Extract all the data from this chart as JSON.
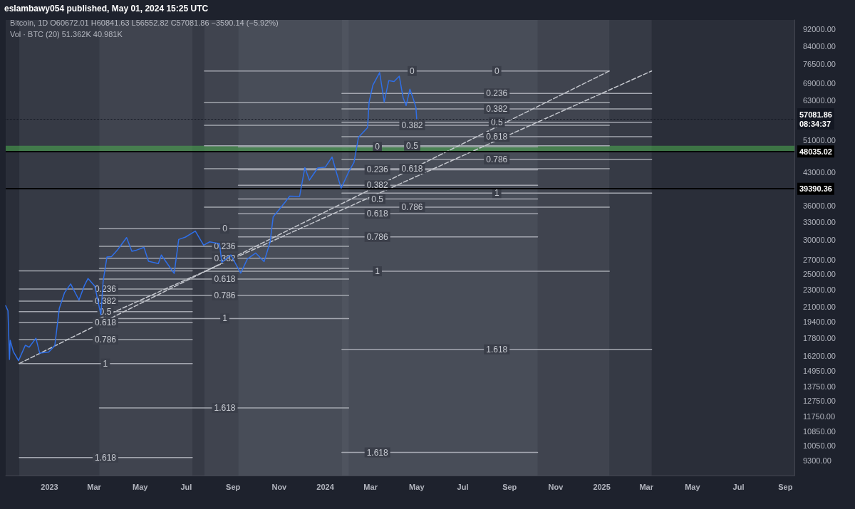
{
  "chart_data": {
    "type": "line",
    "title": "eslambawy054 published, May 01, 2024 15:25 UTC",
    "annotations": [
      "Bitcoin, 1D  O60672.01  H60841.63  L56552.82  C57081.86  −3590.14 (−5.92%)",
      "Vol · BTC (20)  51.362K  40.981K",
      {
        "text": "0.236",
        "x": "2023-03-16",
        "y": 23120
      },
      {
        "text": "0.382",
        "x": "2023-03-16",
        "y": 21680
      },
      {
        "text": "0.5",
        "x": "2023-03-16",
        "y": 20510
      },
      {
        "text": "0.618",
        "x": "2023-03-16",
        "y": 19340
      },
      {
        "text": "0.786",
        "x": "2023-03-16",
        "y": 17680
      },
      {
        "text": "1",
        "x": "2023-03-16",
        "y": 15560
      },
      {
        "text": "1.618",
        "x": "2023-03-16",
        "y": 9440
      },
      {
        "text": "0",
        "x": "2023-08-21",
        "y": 31850
      },
      {
        "text": "0.236",
        "x": "2023-08-21",
        "y": 29000
      },
      {
        "text": "0.382",
        "x": "2023-08-21",
        "y": 27230
      },
      {
        "text": "0.618",
        "x": "2023-08-21",
        "y": 24380
      },
      {
        "text": "0.786",
        "x": "2023-08-21",
        "y": 22350
      },
      {
        "text": "1",
        "x": "2023-08-21",
        "y": 19760
      },
      {
        "text": "1.618",
        "x": "2023-08-21",
        "y": 12290
      },
      {
        "text": "0",
        "x": "2024-03-10",
        "y": 49200
      },
      {
        "text": "0.236",
        "x": "2024-03-10",
        "y": 43580
      },
      {
        "text": "0.382",
        "x": "2024-03-10",
        "y": 40110
      },
      {
        "text": "0.5",
        "x": "2024-03-10",
        "y": 37300
      },
      {
        "text": "0.618",
        "x": "2024-03-10",
        "y": 34490
      },
      {
        "text": "0.786",
        "x": "2024-03-10",
        "y": 30490
      },
      {
        "text": "1",
        "x": "2024-03-10",
        "y": 25400
      },
      {
        "text": "1.618",
        "x": "2024-03-10",
        "y": 9700
      },
      {
        "text": "0",
        "x": "2024-04-25",
        "y": 73640
      },
      {
        "text": "0.382",
        "x": "2024-04-25",
        "y": 55210
      },
      {
        "text": "0.5",
        "x": "2024-04-25",
        "y": 49520
      },
      {
        "text": "0.618",
        "x": "2024-04-25",
        "y": 43830
      },
      {
        "text": "0.786",
        "x": "2024-04-25",
        "y": 35730
      },
      {
        "text": "0",
        "x": "2024-08-15",
        "y": 73640
      },
      {
        "text": "0.236",
        "x": "2024-08-15",
        "y": 65340
      },
      {
        "text": "0.382",
        "x": "2024-08-15",
        "y": 60210
      },
      {
        "text": "0.5",
        "x": "2024-08-15",
        "y": 56070
      },
      {
        "text": "0.618",
        "x": "2024-08-15",
        "y": 51920
      },
      {
        "text": "0.786",
        "x": "2024-08-15",
        "y": 46010
      },
      {
        "text": "1",
        "x": "2024-08-15",
        "y": 38490
      },
      {
        "text": "1.618",
        "x": "2024-08-15",
        "y": 16770
      }
    ],
    "log": true,
    "xlim": [
      "2022-11-04",
      "2025-09-13"
    ],
    "xticks": [
      {
        "value": "2023-01-01",
        "label": "2023"
      },
      {
        "value": "2023-03-01",
        "label": "Mar"
      },
      {
        "value": "2023-05-01",
        "label": "May"
      },
      {
        "value": "2023-07-01",
        "label": "Jul"
      },
      {
        "value": "2023-09-01",
        "label": "Sep"
      },
      {
        "value": "2023-11-01",
        "label": "Nov"
      },
      {
        "value": "2024-01-01",
        "label": "2024"
      },
      {
        "value": "2024-03-01",
        "label": "Mar"
      },
      {
        "value": "2024-05-01",
        "label": "May"
      },
      {
        "value": "2024-07-01",
        "label": "Jul"
      },
      {
        "value": "2024-09-01",
        "label": "Sep"
      },
      {
        "value": "2024-11-01",
        "label": "Nov"
      },
      {
        "value": "2025-01-01",
        "label": "2025"
      },
      {
        "value": "2025-03-01",
        "label": "Mar"
      },
      {
        "value": "2025-05-01",
        "label": "May"
      },
      {
        "value": "2025-07-01",
        "label": "Jul"
      },
      {
        "value": "2025-09-01",
        "label": "Sep"
      }
    ],
    "ylim": [
      8580,
      96600
    ],
    "yticks": [
      {
        "value": 92000,
        "label": "92000.00"
      },
      {
        "value": 84000,
        "label": "84000.00"
      },
      {
        "value": 76500,
        "label": "76500.00"
      },
      {
        "value": 69000,
        "label": "69000.00"
      },
      {
        "value": 63000,
        "label": "63000.00"
      },
      {
        "value": 51000,
        "label": "51000.00"
      },
      {
        "value": 43000,
        "label": "43000.00"
      },
      {
        "value": 36000,
        "label": "36000.00"
      },
      {
        "value": 33000,
        "label": "33000.00"
      },
      {
        "value": 30000,
        "label": "30000.00"
      },
      {
        "value": 27000,
        "label": "27000.00"
      },
      {
        "value": 25000,
        "label": "25000.00"
      },
      {
        "value": 23000,
        "label": "23000.00"
      },
      {
        "value": 21000,
        "label": "21000.00"
      },
      {
        "value": 19400,
        "label": "19400.00"
      },
      {
        "value": 17800,
        "label": "17800.00"
      },
      {
        "value": 16200,
        "label": "16200.00"
      },
      {
        "value": 14950,
        "label": "14950.00"
      },
      {
        "value": 13750,
        "label": "13750.00"
      },
      {
        "value": 12750,
        "label": "12750.00"
      },
      {
        "value": 11750,
        "label": "11750.00"
      },
      {
        "value": 10850,
        "label": "10850.00"
      },
      {
        "value": 10050,
        "label": "10050.00"
      },
      {
        "value": 9300,
        "label": "9300.00"
      }
    ],
    "marker": "none",
    "bands": [
      {
        "axis": "x",
        "from": "2022-11-22",
        "to": "2023-07-09",
        "color": "#787b86"
      },
      {
        "axis": "x",
        "from": "2023-03-08",
        "to": "2024-02-01",
        "color": "#787b86"
      },
      {
        "axis": "x",
        "from": "2023-07-25",
        "to": "2025-01-11",
        "color": "#787b86"
      },
      {
        "axis": "x",
        "from": "2023-09-08",
        "to": "2024-10-08",
        "color": "#787b86"
      },
      {
        "axis": "x",
        "from": "2024-01-23",
        "to": "2025-03-08",
        "color": "#787b86"
      },
      {
        "axis": "y",
        "from": 47940,
        "to": 49480,
        "color": "#4caf50"
      }
    ],
    "ref_lines": [
      {
        "axis": "y",
        "value": 57081.86,
        "label": "57081.86\n08:34:37",
        "color": "#131722",
        "line_style": "dotted"
      },
      {
        "axis": "y",
        "value": 48035.02,
        "label": "48035.02",
        "color": "#000000",
        "line_style": "solid"
      },
      {
        "axis": "y",
        "value": 39390.36,
        "label": "39390.36",
        "color": "#000000",
        "line_style": "solid"
      }
    ],
    "series": [
      {
        "color": "#a3a6af",
        "x": [
          "2022-11-22",
          "2023-07-09"
        ],
        "values": [
          25460,
          25460
        ]
      },
      {
        "color": "#a3a6af",
        "x": [
          "2022-11-22",
          "2023-07-09"
        ],
        "values": [
          23120,
          23120
        ]
      },
      {
        "color": "#a3a6af",
        "x": [
          "2022-11-22",
          "2023-07-09"
        ],
        "values": [
          21680,
          21680
        ]
      },
      {
        "color": "#a3a6af",
        "x": [
          "2022-11-22",
          "2023-07-09"
        ],
        "values": [
          20510,
          20510
        ]
      },
      {
        "color": "#a3a6af",
        "x": [
          "2022-11-22",
          "2023-07-09"
        ],
        "values": [
          19340,
          19340
        ]
      },
      {
        "color": "#a3a6af",
        "x": [
          "2022-11-22",
          "2023-07-09"
        ],
        "values": [
          17680,
          17680
        ]
      },
      {
        "color": "#a3a6af",
        "x": [
          "2022-11-22",
          "2023-07-09"
        ],
        "values": [
          15560,
          15560
        ]
      },
      {
        "color": "#a3a6af",
        "x": [
          "2022-11-22",
          "2023-07-09"
        ],
        "values": [
          9440,
          9440
        ]
      },
      {
        "color": "#a3a6af",
        "x": [
          "2023-03-08",
          "2024-02-01"
        ],
        "values": [
          31850,
          31850
        ]
      },
      {
        "color": "#a3a6af",
        "x": [
          "2023-03-08",
          "2024-02-01"
        ],
        "values": [
          29000,
          29000
        ]
      },
      {
        "color": "#a3a6af",
        "x": [
          "2023-03-08",
          "2024-02-01"
        ],
        "values": [
          27230,
          27230
        ]
      },
      {
        "color": "#a3a6af",
        "x": [
          "2023-03-08",
          "2024-02-01"
        ],
        "values": [
          25800,
          25800
        ]
      },
      {
        "color": "#a3a6af",
        "x": [
          "2023-03-08",
          "2024-02-01"
        ],
        "values": [
          24380,
          24380
        ]
      },
      {
        "color": "#a3a6af",
        "x": [
          "2023-03-08",
          "2024-02-01"
        ],
        "values": [
          22350,
          22350
        ]
      },
      {
        "color": "#a3a6af",
        "x": [
          "2023-03-08",
          "2024-02-01"
        ],
        "values": [
          19760,
          19760
        ]
      },
      {
        "color": "#a3a6af",
        "x": [
          "2023-03-08",
          "2024-02-01"
        ],
        "values": [
          12290,
          12290
        ]
      },
      {
        "color": "#a3a6af",
        "x": [
          "2023-07-25",
          "2025-01-11"
        ],
        "values": [
          73640,
          73640
        ]
      },
      {
        "color": "#a3a6af",
        "x": [
          "2023-07-25",
          "2025-01-11"
        ],
        "values": [
          62260,
          62260
        ]
      },
      {
        "color": "#a3a6af",
        "x": [
          "2023-07-25",
          "2025-01-11"
        ],
        "values": [
          55210,
          55210
        ]
      },
      {
        "color": "#a3a6af",
        "x": [
          "2023-07-25",
          "2025-01-11"
        ],
        "values": [
          49520,
          49520
        ]
      },
      {
        "color": "#a3a6af",
        "x": [
          "2023-07-25",
          "2025-01-11"
        ],
        "values": [
          43830,
          43830
        ]
      },
      {
        "color": "#a3a6af",
        "x": [
          "2023-07-25",
          "2025-01-11"
        ],
        "values": [
          35730,
          35730
        ]
      },
      {
        "color": "#a3a6af",
        "x": [
          "2023-07-25",
          "2025-01-11"
        ],
        "values": [
          25400,
          25400
        ]
      },
      {
        "color": "#a3a6af",
        "x": [
          "2023-09-08",
          "2024-10-08"
        ],
        "values": [
          49200,
          49200
        ]
      },
      {
        "color": "#a3a6af",
        "x": [
          "2023-09-08",
          "2024-10-08"
        ],
        "values": [
          43580,
          43580
        ]
      },
      {
        "color": "#a3a6af",
        "x": [
          "2023-09-08",
          "2024-10-08"
        ],
        "values": [
          40110,
          40110
        ]
      },
      {
        "color": "#a3a6af",
        "x": [
          "2023-09-08",
          "2024-10-08"
        ],
        "values": [
          37300,
          37300
        ]
      },
      {
        "color": "#a3a6af",
        "x": [
          "2023-09-08",
          "2024-10-08"
        ],
        "values": [
          34490,
          34490
        ]
      },
      {
        "color": "#a3a6af",
        "x": [
          "2023-09-08",
          "2024-10-08"
        ],
        "values": [
          30490,
          30490
        ]
      },
      {
        "color": "#a3a6af",
        "x": [
          "2024-01-23",
          "2024-10-08"
        ],
        "values": [
          9700,
          9700
        ]
      },
      {
        "color": "#a3a6af",
        "x": [
          "2024-01-23",
          "2025-03-08"
        ],
        "values": [
          65340,
          65340
        ]
      },
      {
        "color": "#a3a6af",
        "x": [
          "2024-01-23",
          "2025-03-08"
        ],
        "values": [
          60210,
          60210
        ]
      },
      {
        "color": "#a3a6af",
        "x": [
          "2024-01-23",
          "2025-03-08"
        ],
        "values": [
          56070,
          56070
        ]
      },
      {
        "color": "#a3a6af",
        "x": [
          "2024-01-23",
          "2025-03-08"
        ],
        "values": [
          51920,
          51920
        ]
      },
      {
        "color": "#a3a6af",
        "x": [
          "2024-01-23",
          "2025-03-08"
        ],
        "values": [
          46010,
          46010
        ]
      },
      {
        "color": "#a3a6af",
        "x": [
          "2024-01-23",
          "2025-03-08"
        ],
        "values": [
          38490,
          38490
        ]
      },
      {
        "color": "#a3a6af",
        "x": [
          "2024-01-23",
          "2025-03-08"
        ],
        "values": [
          16770,
          16770
        ]
      },
      {
        "color": "#c5c8cf",
        "line_style": "dashed",
        "x": [
          "2022-11-22",
          "2025-01-11"
        ],
        "values": [
          15560,
          73640
        ]
      },
      {
        "color": "#c5c8cf",
        "line_style": "dashed",
        "x": [
          "2023-03-08",
          "2025-03-08"
        ],
        "values": [
          19760,
          73640
        ]
      },
      {
        "color": "#2f6fe8",
        "x": [
          "2022-11-04",
          "2022-11-07",
          "2022-11-09",
          "2022-11-10",
          "2022-11-14",
          "2022-11-21",
          "2022-11-30",
          "2022-12-05",
          "2022-12-14",
          "2022-12-19",
          "2022-12-31",
          "2023-01-08",
          "2023-01-14",
          "2023-01-21",
          "2023-01-29",
          "2023-02-09",
          "2023-02-16",
          "2023-02-21",
          "2023-03-02",
          "2023-03-10",
          "2023-03-13",
          "2023-03-18",
          "2023-03-24",
          "2023-04-01",
          "2023-04-13",
          "2023-04-20",
          "2023-04-26",
          "2023-05-06",
          "2023-05-12",
          "2023-05-25",
          "2023-05-29",
          "2023-06-10",
          "2023-06-15",
          "2023-06-21",
          "2023-06-30",
          "2023-07-13",
          "2023-07-24",
          "2023-08-01",
          "2023-08-14",
          "2023-08-17",
          "2023-08-29",
          "2023-09-11",
          "2023-09-20",
          "2023-10-01",
          "2023-10-12",
          "2023-10-20",
          "2023-10-24",
          "2023-11-09",
          "2023-11-15",
          "2023-11-28",
          "2023-12-05",
          "2023-12-11",
          "2023-12-22",
          "2024-01-01",
          "2024-01-10",
          "2024-01-16",
          "2024-01-22",
          "2024-02-01",
          "2024-02-08",
          "2024-02-14",
          "2024-02-26",
          "2024-02-28",
          "2024-03-04",
          "2024-03-13",
          "2024-03-19",
          "2024-03-25",
          "2024-04-01",
          "2024-04-08",
          "2024-04-13",
          "2024-04-17",
          "2024-04-22",
          "2024-04-27",
          "2024-04-30",
          "2024-05-01"
        ],
        "values": [
          21150,
          20600,
          15900,
          17600,
          16600,
          15800,
          17150,
          16970,
          17800,
          16440,
          16540,
          17120,
          20880,
          22700,
          23750,
          21800,
          23520,
          24450,
          23470,
          20150,
          24120,
          27400,
          27470,
          28470,
          30390,
          28240,
          28420,
          28850,
          26800,
          26470,
          27700,
          25850,
          25120,
          30080,
          30470,
          31450,
          29180,
          29700,
          29420,
          26620,
          27720,
          25150,
          27130,
          27990,
          26750,
          29670,
          33900,
          36700,
          37880,
          37820,
          44080,
          41240,
          43980,
          44180,
          46630,
          42800,
          39500,
          43080,
          45290,
          51800,
          54500,
          62400,
          68300,
          73070,
          62440,
          69950,
          69640,
          71620,
          63910,
          61270,
          66840,
          63120,
          60670,
          57081.86
        ]
      }
    ]
  }
}
